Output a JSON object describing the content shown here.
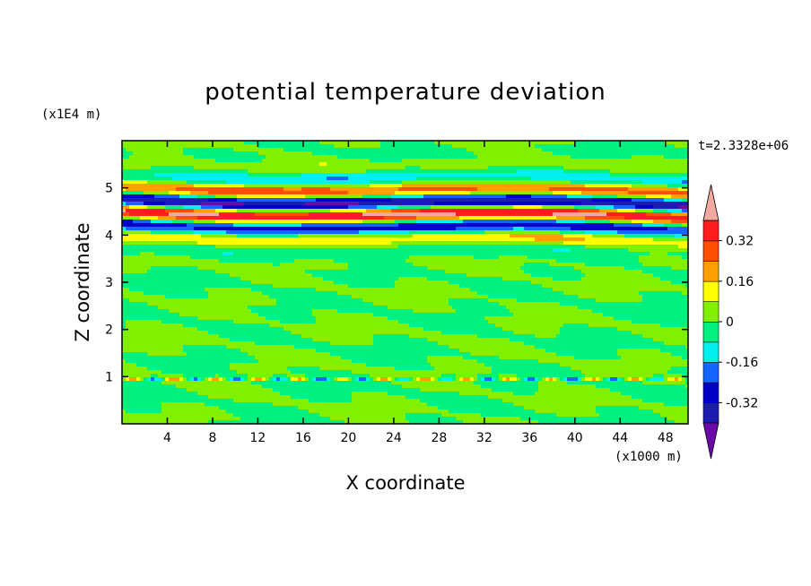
{
  "chart_data": {
    "type": "heatmap",
    "title": "potential temperature deviation",
    "xlabel": "X coordinate",
    "ylabel": "Z coordinate",
    "x_unit": "(x1000 m)",
    "y_unit": "(x1E4 m)",
    "time_label": "t=2.3328e+06",
    "xlim": [
      0,
      50
    ],
    "ylim": [
      0,
      6
    ],
    "x_ticks": [
      "4",
      "8",
      "12",
      "16",
      "20",
      "24",
      "28",
      "32",
      "36",
      "40",
      "44",
      "48"
    ],
    "y_ticks": [
      "1",
      "2",
      "3",
      "4",
      "5"
    ],
    "colorbar": {
      "levels": [
        -0.4,
        -0.32,
        -0.24,
        -0.16,
        -0.08,
        0,
        0.08,
        0.16,
        0.24,
        0.32,
        0.4
      ],
      "labels": [
        "0.32",
        "0.16",
        "0",
        "-0.16",
        "-0.32"
      ],
      "label_values": [
        0.32,
        0.16,
        0,
        -0.16,
        -0.32
      ],
      "colors": [
        "#6a0aa8",
        "#1c1cb0",
        "#0000c8",
        "#1464ff",
        "#00f0f0",
        "#00f080",
        "#80f000",
        "#ffff00",
        "#ffa000",
        "#ff5000",
        "#ff1e1e",
        "#f0a8a0"
      ],
      "extend": "both"
    },
    "grid": false
  }
}
